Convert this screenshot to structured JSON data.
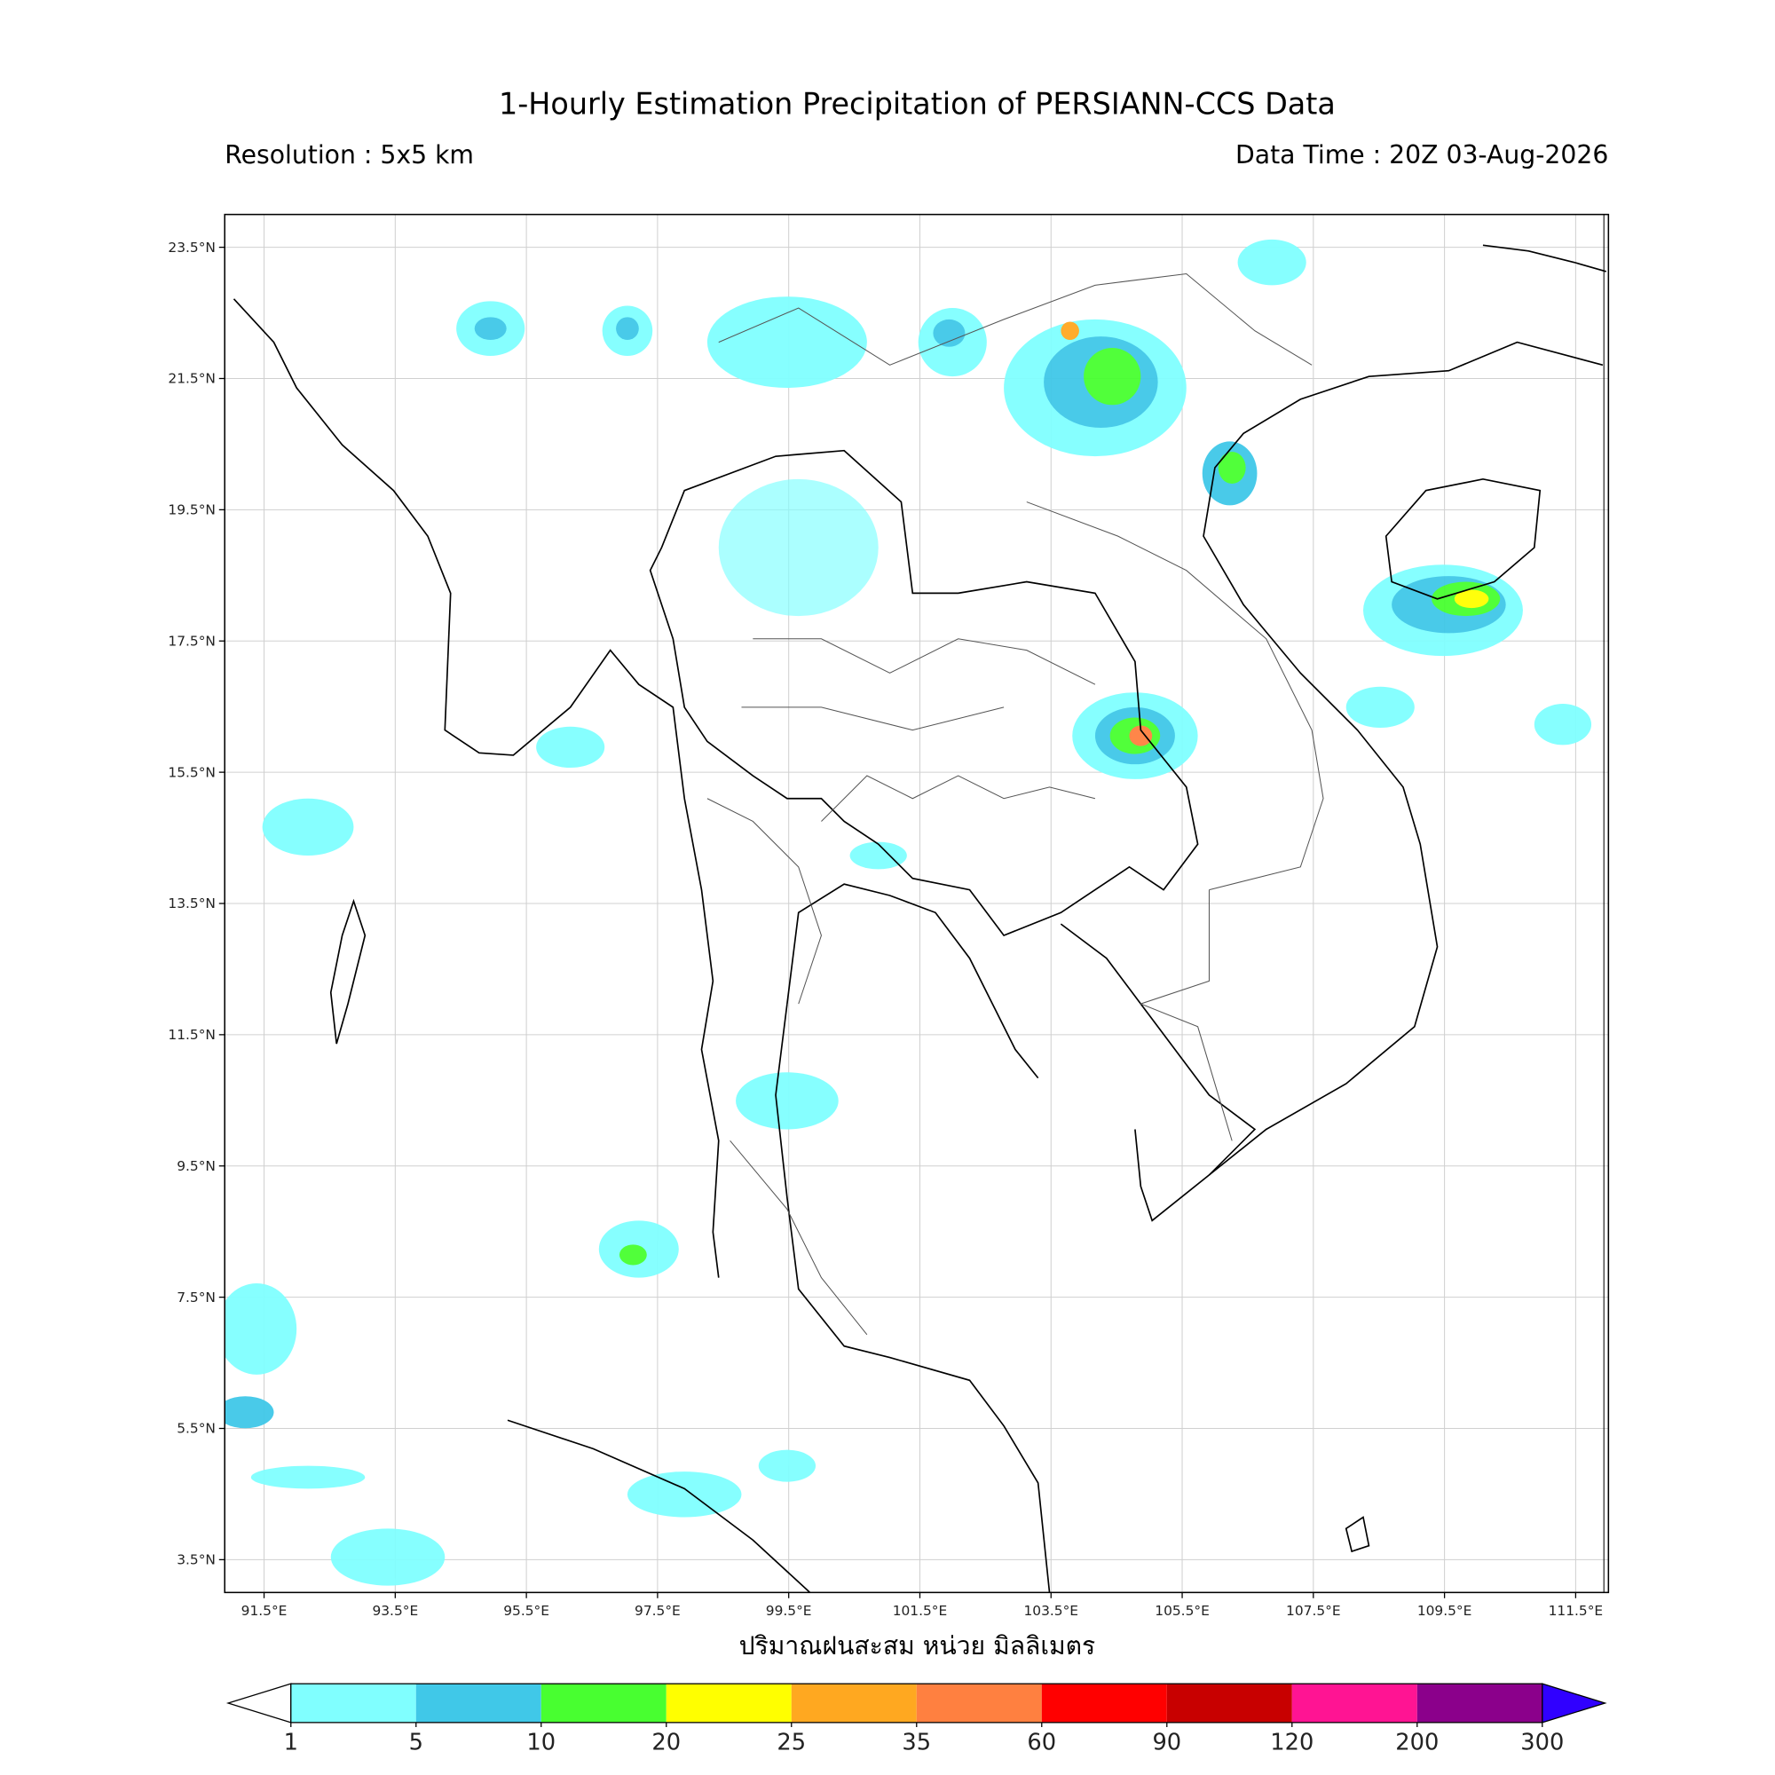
{
  "header": {
    "title": "1-Hourly Estimation Precipitation of PERSIANN-CCS Data",
    "resolution": "Resolution : 5x5 km",
    "data_time": "Data Time : 20Z 03-Aug-2026"
  },
  "map": {
    "xlim": [
      90.9,
      112.0
    ],
    "ylim": [
      3.0,
      24.0
    ],
    "xticks": [
      {
        "value": 91.5,
        "label": "91.5°E"
      },
      {
        "value": 93.5,
        "label": "93.5°E"
      },
      {
        "value": 95.5,
        "label": "95.5°E"
      },
      {
        "value": 97.5,
        "label": "97.5°E"
      },
      {
        "value": 99.5,
        "label": "99.5°E"
      },
      {
        "value": 101.5,
        "label": "101.5°E"
      },
      {
        "value": 103.5,
        "label": "103.5°E"
      },
      {
        "value": 105.5,
        "label": "105.5°E"
      },
      {
        "value": 107.5,
        "label": "107.5°E"
      },
      {
        "value": 109.5,
        "label": "109.5°E"
      },
      {
        "value": 111.5,
        "label": "111.5°E"
      }
    ],
    "yticks": [
      {
        "value": 3.5,
        "label": "3.5°N"
      },
      {
        "value": 5.5,
        "label": "5.5°N"
      },
      {
        "value": 7.5,
        "label": "7.5°N"
      },
      {
        "value": 9.5,
        "label": "9.5°N"
      },
      {
        "value": 11.5,
        "label": "11.5°N"
      },
      {
        "value": 13.5,
        "label": "13.5°N"
      },
      {
        "value": 15.5,
        "label": "15.5°N"
      },
      {
        "value": 17.5,
        "label": "17.5°N"
      },
      {
        "value": 19.5,
        "label": "19.5°N"
      },
      {
        "value": 21.5,
        "label": "21.5°N"
      },
      {
        "value": 23.5,
        "label": "23.5°N"
      }
    ],
    "grid": true,
    "xlabel": "ปริมาณฝนสะสม หน่วย มิลลิเมตร"
  },
  "colorbar": {
    "levels": [
      1,
      5,
      10,
      20,
      25,
      35,
      60,
      90,
      120,
      200,
      300
    ],
    "colors": [
      "#80ffff",
      "#40c8e8",
      "#48ff30",
      "#ffff00",
      "#ffa820",
      "#ff8040",
      "#ff0000",
      "#c80000",
      "#ff1493",
      "#8b008b"
    ],
    "under_color": "#ffffff",
    "over_color": "#3000ff"
  }
}
